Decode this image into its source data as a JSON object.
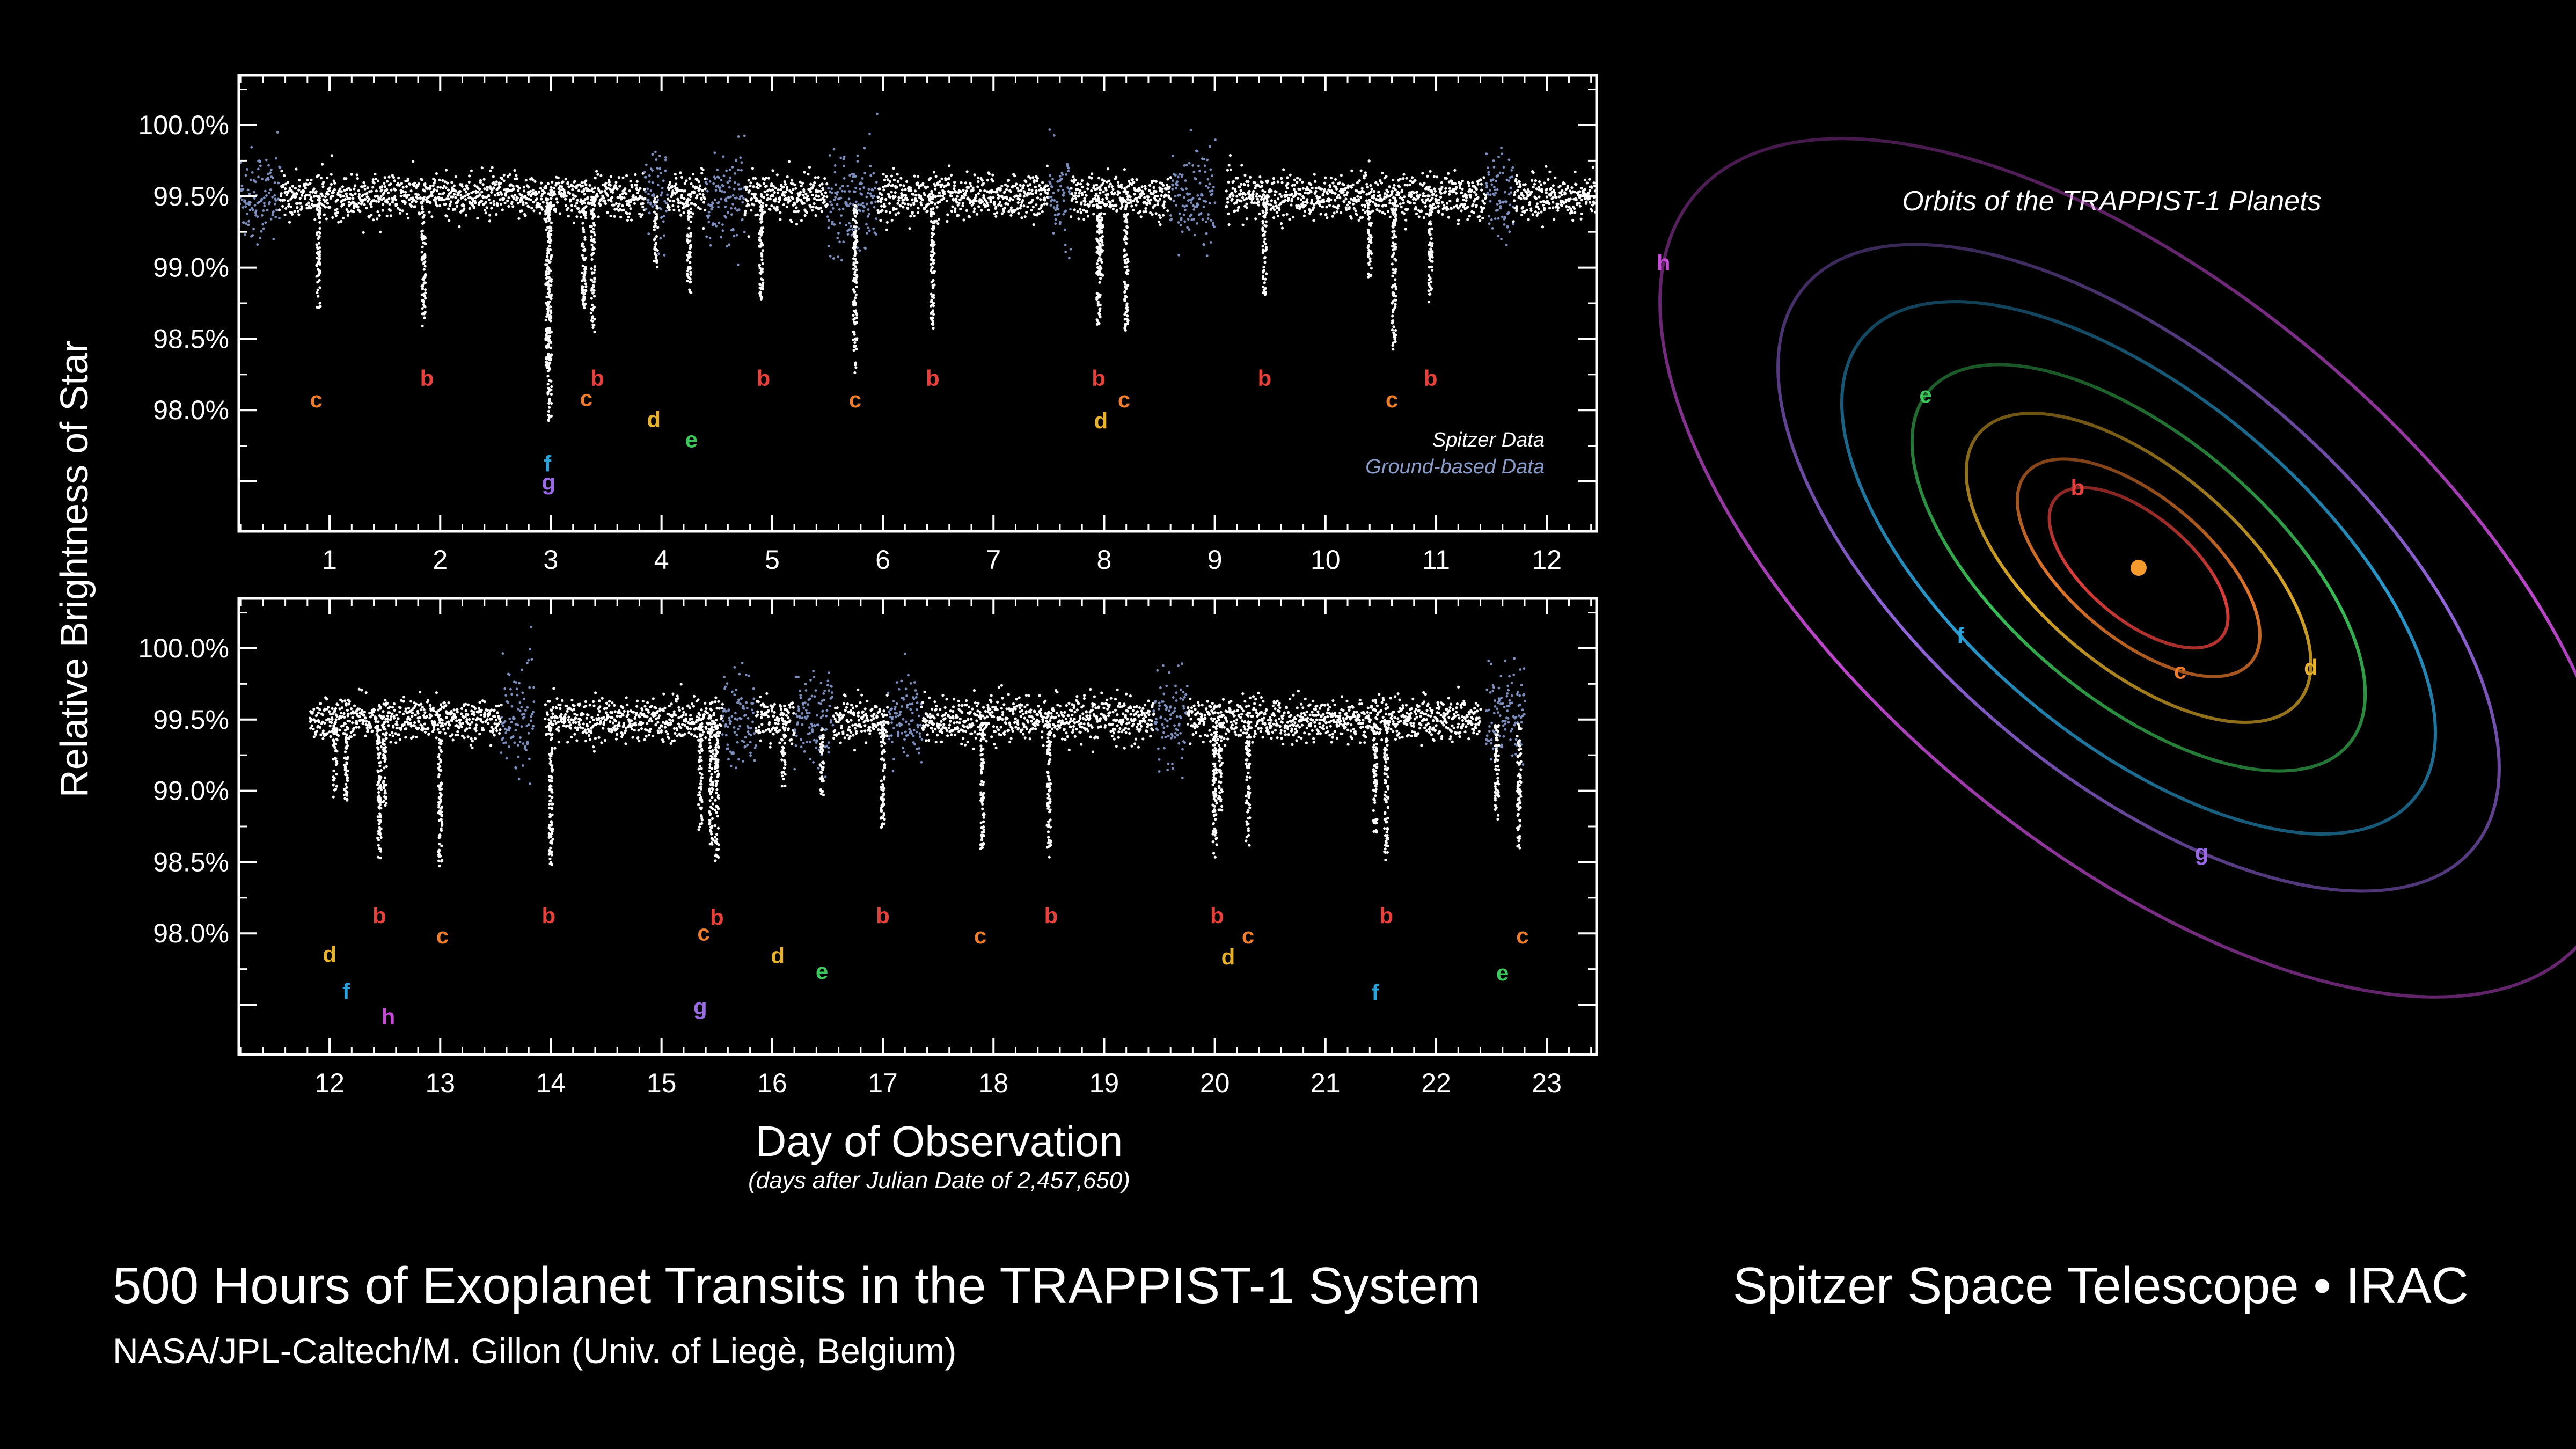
{
  "footer": {
    "title": "500 Hours of Exoplanet Transits in the TRAPPIST-1 System",
    "credit": "NASA/JPL-Caltech/M. Gillon (Univ. of Liegè, Belgium)",
    "instrument": "Spitzer Space Telescope • IRAC"
  },
  "planet_colors": {
    "b": "#e8413c",
    "c": "#f07d2c",
    "d": "#e8b32a",
    "e": "#3cc85a",
    "f": "#2aa4dc",
    "g": "#9a6ae8",
    "h": "#c84ad8"
  },
  "chart_data": [
    {
      "type": "scatter",
      "panel": "top",
      "ylabel": "Relative Brightness of Star",
      "xlabel": "Day of Observation",
      "xlabel_sub": "(days after Julian Date of 2,457,650)",
      "xlim": [
        0.18,
        12.45
      ],
      "ylim": [
        97.15,
        100.35
      ],
      "xticks": [
        "1",
        "2",
        "3",
        "4",
        "5",
        "6",
        "7",
        "8",
        "9",
        "10",
        "11",
        "12"
      ],
      "yticks": [
        "100.0%",
        "99.5%",
        "99.0%",
        "98.5%",
        "98.0%"
      ],
      "ytick_values": [
        100.0,
        99.5,
        99.0,
        98.5,
        98.0
      ],
      "baseline": 99.5,
      "legend": [
        {
          "label": "Spitzer Data",
          "color": "#ffffff"
        },
        {
          "label": "Ground-based Data",
          "color": "#8a9cc8"
        }
      ],
      "ground_based_intervals": [
        [
          0.18,
          0.55
        ],
        [
          3.85,
          4.05
        ],
        [
          4.4,
          4.75
        ],
        [
          5.5,
          5.95
        ],
        [
          7.5,
          7.7
        ],
        [
          8.6,
          9.0
        ],
        [
          11.45,
          11.7
        ]
      ],
      "gaps": [
        [
          9.0,
          9.1
        ]
      ],
      "transits": [
        {
          "planet": "c",
          "day": 0.9,
          "depth": 98.75
        },
        {
          "planet": "b",
          "day": 1.85,
          "depth": 98.65
        },
        {
          "planet": "f",
          "day": 2.97,
          "depth": 98.3
        },
        {
          "planet": "g",
          "day": 2.99,
          "depth": 97.95
        },
        {
          "planet": "c",
          "day": 3.3,
          "depth": 98.75
        },
        {
          "planet": "b",
          "day": 3.38,
          "depth": 98.6
        },
        {
          "planet": "d",
          "day": 3.95,
          "depth": 99.05
        },
        {
          "planet": "e",
          "day": 4.25,
          "depth": 98.85
        },
        {
          "planet": "b",
          "day": 4.9,
          "depth": 98.75
        },
        {
          "planet": "c",
          "day": 5.75,
          "depth": 98.3
        },
        {
          "planet": "b",
          "day": 6.45,
          "depth": 98.6
        },
        {
          "planet": "b",
          "day": 7.95,
          "depth": 98.6
        },
        {
          "planet": "d",
          "day": 7.97,
          "depth": 98.95
        },
        {
          "planet": "c",
          "day": 8.2,
          "depth": 98.6
        },
        {
          "planet": "b",
          "day": 9.45,
          "depth": 98.85
        },
        {
          "planet": "c",
          "day": 10.4,
          "depth": 98.95
        },
        {
          "planet": "c",
          "day": 10.62,
          "depth": 98.45
        },
        {
          "planet": "b",
          "day": 10.95,
          "depth": 98.8
        }
      ],
      "labels": [
        {
          "text": "c",
          "planet": "c",
          "x": 0.88,
          "y": 98.02
        },
        {
          "text": "b",
          "planet": "b",
          "x": 1.88,
          "y": 98.17
        },
        {
          "text": "f",
          "planet": "f",
          "x": 2.97,
          "y": 97.57
        },
        {
          "text": "g",
          "planet": "g",
          "x": 2.98,
          "y": 97.44
        },
        {
          "text": "c",
          "planet": "c",
          "x": 3.32,
          "y": 98.03
        },
        {
          "text": "b",
          "planet": "b",
          "x": 3.42,
          "y": 98.17
        },
        {
          "text": "d",
          "planet": "d",
          "x": 3.93,
          "y": 97.88
        },
        {
          "text": "e",
          "planet": "e",
          "x": 4.27,
          "y": 97.74
        },
        {
          "text": "b",
          "planet": "b",
          "x": 4.92,
          "y": 98.17
        },
        {
          "text": "c",
          "planet": "c",
          "x": 5.75,
          "y": 98.02
        },
        {
          "text": "b",
          "planet": "b",
          "x": 6.45,
          "y": 98.17
        },
        {
          "text": "b",
          "planet": "b",
          "x": 7.95,
          "y": 98.17
        },
        {
          "text": "d",
          "planet": "d",
          "x": 7.97,
          "y": 97.87
        },
        {
          "text": "c",
          "planet": "c",
          "x": 8.18,
          "y": 98.02
        },
        {
          "text": "b",
          "planet": "b",
          "x": 9.45,
          "y": 98.17
        },
        {
          "text": "c",
          "planet": "c",
          "x": 10.6,
          "y": 98.02
        },
        {
          "text": "b",
          "planet": "b",
          "x": 10.95,
          "y": 98.17
        }
      ]
    },
    {
      "type": "scatter",
      "panel": "bottom",
      "ylabel": "Relative Brightness of Star",
      "xlabel": "Day of Observation",
      "xlim": [
        11.18,
        23.45
      ],
      "ylim": [
        97.15,
        100.35
      ],
      "xticks": [
        "12",
        "13",
        "14",
        "15",
        "16",
        "17",
        "18",
        "19",
        "20",
        "21",
        "22",
        "23"
      ],
      "yticks": [
        "100.0%",
        "99.5%",
        "99.0%",
        "98.5%",
        "98.0%"
      ],
      "ytick_values": [
        100.0,
        99.5,
        99.0,
        98.5,
        98.0
      ],
      "baseline": 99.5,
      "ground_based_intervals": [
        [
          13.55,
          13.85
        ],
        [
          15.55,
          15.85
        ],
        [
          16.2,
          16.55
        ],
        [
          17.05,
          17.35
        ],
        [
          19.45,
          19.75
        ],
        [
          22.42,
          22.8
        ]
      ],
      "gaps": [
        [
          11.18,
          11.82
        ],
        [
          13.85,
          13.95
        ],
        [
          22.4,
          22.45
        ],
        [
          22.8,
          23.45
        ]
      ],
      "transits": [
        {
          "planet": "f",
          "day": 12.05,
          "depth": 99.0
        },
        {
          "planet": "d",
          "day": 12.15,
          "depth": 98.95
        },
        {
          "planet": "h",
          "day": 12.5,
          "depth": 98.9
        },
        {
          "planet": "b",
          "day": 12.45,
          "depth": 98.55
        },
        {
          "planet": "c",
          "day": 13.0,
          "depth": 98.5
        },
        {
          "planet": "b",
          "day": 14.0,
          "depth": 98.5
        },
        {
          "planet": "g",
          "day": 15.35,
          "depth": 98.75
        },
        {
          "planet": "c",
          "day": 15.45,
          "depth": 98.65
        },
        {
          "planet": "b",
          "day": 15.5,
          "depth": 98.55
        },
        {
          "planet": "d",
          "day": 16.1,
          "depth": 99.05
        },
        {
          "planet": "e",
          "day": 16.45,
          "depth": 99.0
        },
        {
          "planet": "b",
          "day": 17.0,
          "depth": 98.75
        },
        {
          "planet": "c",
          "day": 17.9,
          "depth": 98.6
        },
        {
          "planet": "b",
          "day": 18.5,
          "depth": 98.55
        },
        {
          "planet": "b",
          "day": 20.0,
          "depth": 98.55
        },
        {
          "planet": "d",
          "day": 20.05,
          "depth": 98.9
        },
        {
          "planet": "c",
          "day": 20.3,
          "depth": 98.65
        },
        {
          "planet": "f",
          "day": 21.45,
          "depth": 98.7
        },
        {
          "planet": "b",
          "day": 21.55,
          "depth": 98.55
        },
        {
          "planet": "e",
          "day": 22.55,
          "depth": 98.85
        },
        {
          "planet": "c",
          "day": 22.75,
          "depth": 98.65
        }
      ],
      "labels": [
        {
          "text": "d",
          "planet": "d",
          "x": 12.0,
          "y": 97.8
        },
        {
          "text": "f",
          "planet": "f",
          "x": 12.15,
          "y": 97.54
        },
        {
          "text": "b",
          "planet": "b",
          "x": 12.45,
          "y": 98.07
        },
        {
          "text": "h",
          "planet": "h",
          "x": 12.53,
          "y": 97.36
        },
        {
          "text": "c",
          "planet": "c",
          "x": 13.02,
          "y": 97.93
        },
        {
          "text": "b",
          "planet": "b",
          "x": 13.98,
          "y": 98.07
        },
        {
          "text": "c",
          "planet": "c",
          "x": 15.38,
          "y": 97.95
        },
        {
          "text": "b",
          "planet": "b",
          "x": 15.5,
          "y": 98.06
        },
        {
          "text": "g",
          "planet": "g",
          "x": 15.35,
          "y": 97.43
        },
        {
          "text": "d",
          "planet": "d",
          "x": 16.05,
          "y": 97.79
        },
        {
          "text": "e",
          "planet": "e",
          "x": 16.45,
          "y": 97.68
        },
        {
          "text": "b",
          "planet": "b",
          "x": 17.0,
          "y": 98.07
        },
        {
          "text": "c",
          "planet": "c",
          "x": 17.88,
          "y": 97.93
        },
        {
          "text": "b",
          "planet": "b",
          "x": 18.52,
          "y": 98.07
        },
        {
          "text": "b",
          "planet": "b",
          "x": 20.02,
          "y": 98.07
        },
        {
          "text": "d",
          "planet": "d",
          "x": 20.12,
          "y": 97.78
        },
        {
          "text": "c",
          "planet": "c",
          "x": 20.3,
          "y": 97.93
        },
        {
          "text": "f",
          "planet": "f",
          "x": 21.45,
          "y": 97.53
        },
        {
          "text": "b",
          "planet": "b",
          "x": 21.55,
          "y": 98.07
        },
        {
          "text": "e",
          "planet": "e",
          "x": 22.6,
          "y": 97.67
        },
        {
          "text": "c",
          "planet": "c",
          "x": 22.78,
          "y": 97.93
        }
      ]
    },
    {
      "type": "diagram",
      "title": "Orbits of the TRAPPIST-1 Planets",
      "star_color": "#f59a2c",
      "orbits": [
        {
          "planet": "b",
          "relative_size": 0.28
        },
        {
          "planet": "c",
          "relative_size": 0.38
        },
        {
          "planet": "d",
          "relative_size": 0.54
        },
        {
          "planet": "e",
          "relative_size": 0.71
        },
        {
          "planet": "f",
          "relative_size": 0.93
        },
        {
          "planet": "g",
          "relative_size": 1.13
        },
        {
          "planet": "h",
          "relative_size": 1.5
        }
      ]
    }
  ]
}
